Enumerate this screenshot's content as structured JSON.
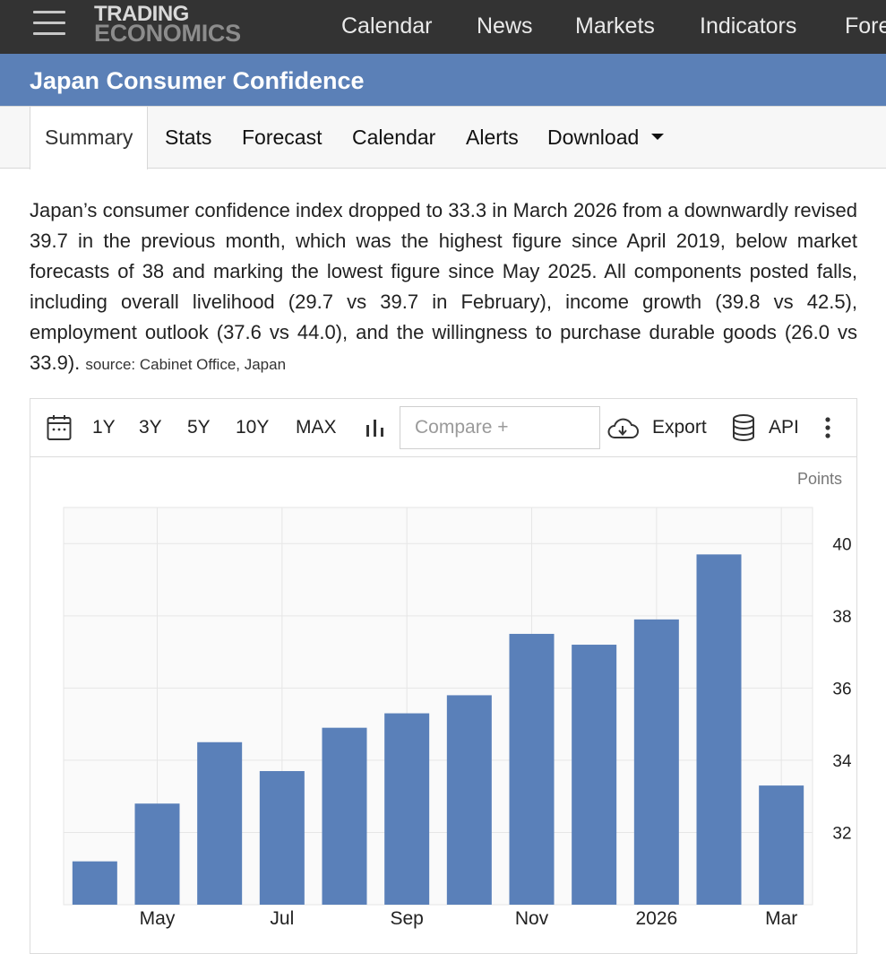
{
  "header": {
    "logo_line1": "TRADING",
    "logo_line2": "ECONOMICS",
    "nav": [
      "Calendar",
      "News",
      "Markets",
      "Indicators",
      "Forecast"
    ]
  },
  "page_title": "Japan Consumer Confidence",
  "tabs": {
    "summary": "Summary",
    "stats": "Stats",
    "forecast": "Forecast",
    "calendar": "Calendar",
    "alerts": "Alerts",
    "download": "Download"
  },
  "summary": {
    "text": "Japan’s consumer confidence index dropped to 33.3 in March 2026 from a downwardly revised 39.7 in the previous month, which was the highest figure since April 2019, below market forecasts of 38 and marking the lowest figure since May 2025. All components posted falls, including overall livelihood (29.7 vs 39.7 in February), income growth (39.8 vs 42.5), employment outlook (37.6 vs 44.0), and the willingness to purchase durable goods (26.0 vs 33.9).",
    "source": "source: Cabinet Office, Japan"
  },
  "toolbar": {
    "ranges": [
      "1Y",
      "3Y",
      "5Y",
      "10Y",
      "MAX"
    ],
    "compare_placeholder": "Compare +",
    "export_label": "Export",
    "api_label": "API"
  },
  "colors": {
    "topbar": "#333333",
    "titlebar": "#5b80b7",
    "bar": "#5a80b9"
  },
  "chart_data": {
    "type": "bar",
    "categories": [
      "Apr 2025",
      "May 2025",
      "Jun 2025",
      "Jul 2025",
      "Aug 2025",
      "Sep 2025",
      "Oct 2025",
      "Nov 2025",
      "Dec 2025",
      "Jan 2026",
      "Feb 2026",
      "Mar 2026"
    ],
    "values": [
      31.2,
      32.8,
      34.5,
      33.7,
      34.9,
      35.3,
      35.8,
      37.5,
      37.2,
      37.9,
      39.7,
      33.3
    ],
    "x_tick_labels": [
      "May",
      "Jul",
      "Sep",
      "Nov",
      "2026",
      "Mar"
    ],
    "x_tick_categories": [
      "May 2025",
      "Jul 2025",
      "Sep 2025",
      "Nov 2025",
      "Jan 2026",
      "Mar 2026"
    ],
    "y_ticks": [
      32,
      34,
      36,
      38,
      40
    ],
    "ylim": [
      30,
      41
    ],
    "unit_label": "Points",
    "grid": true,
    "y_axis_side": "right"
  }
}
